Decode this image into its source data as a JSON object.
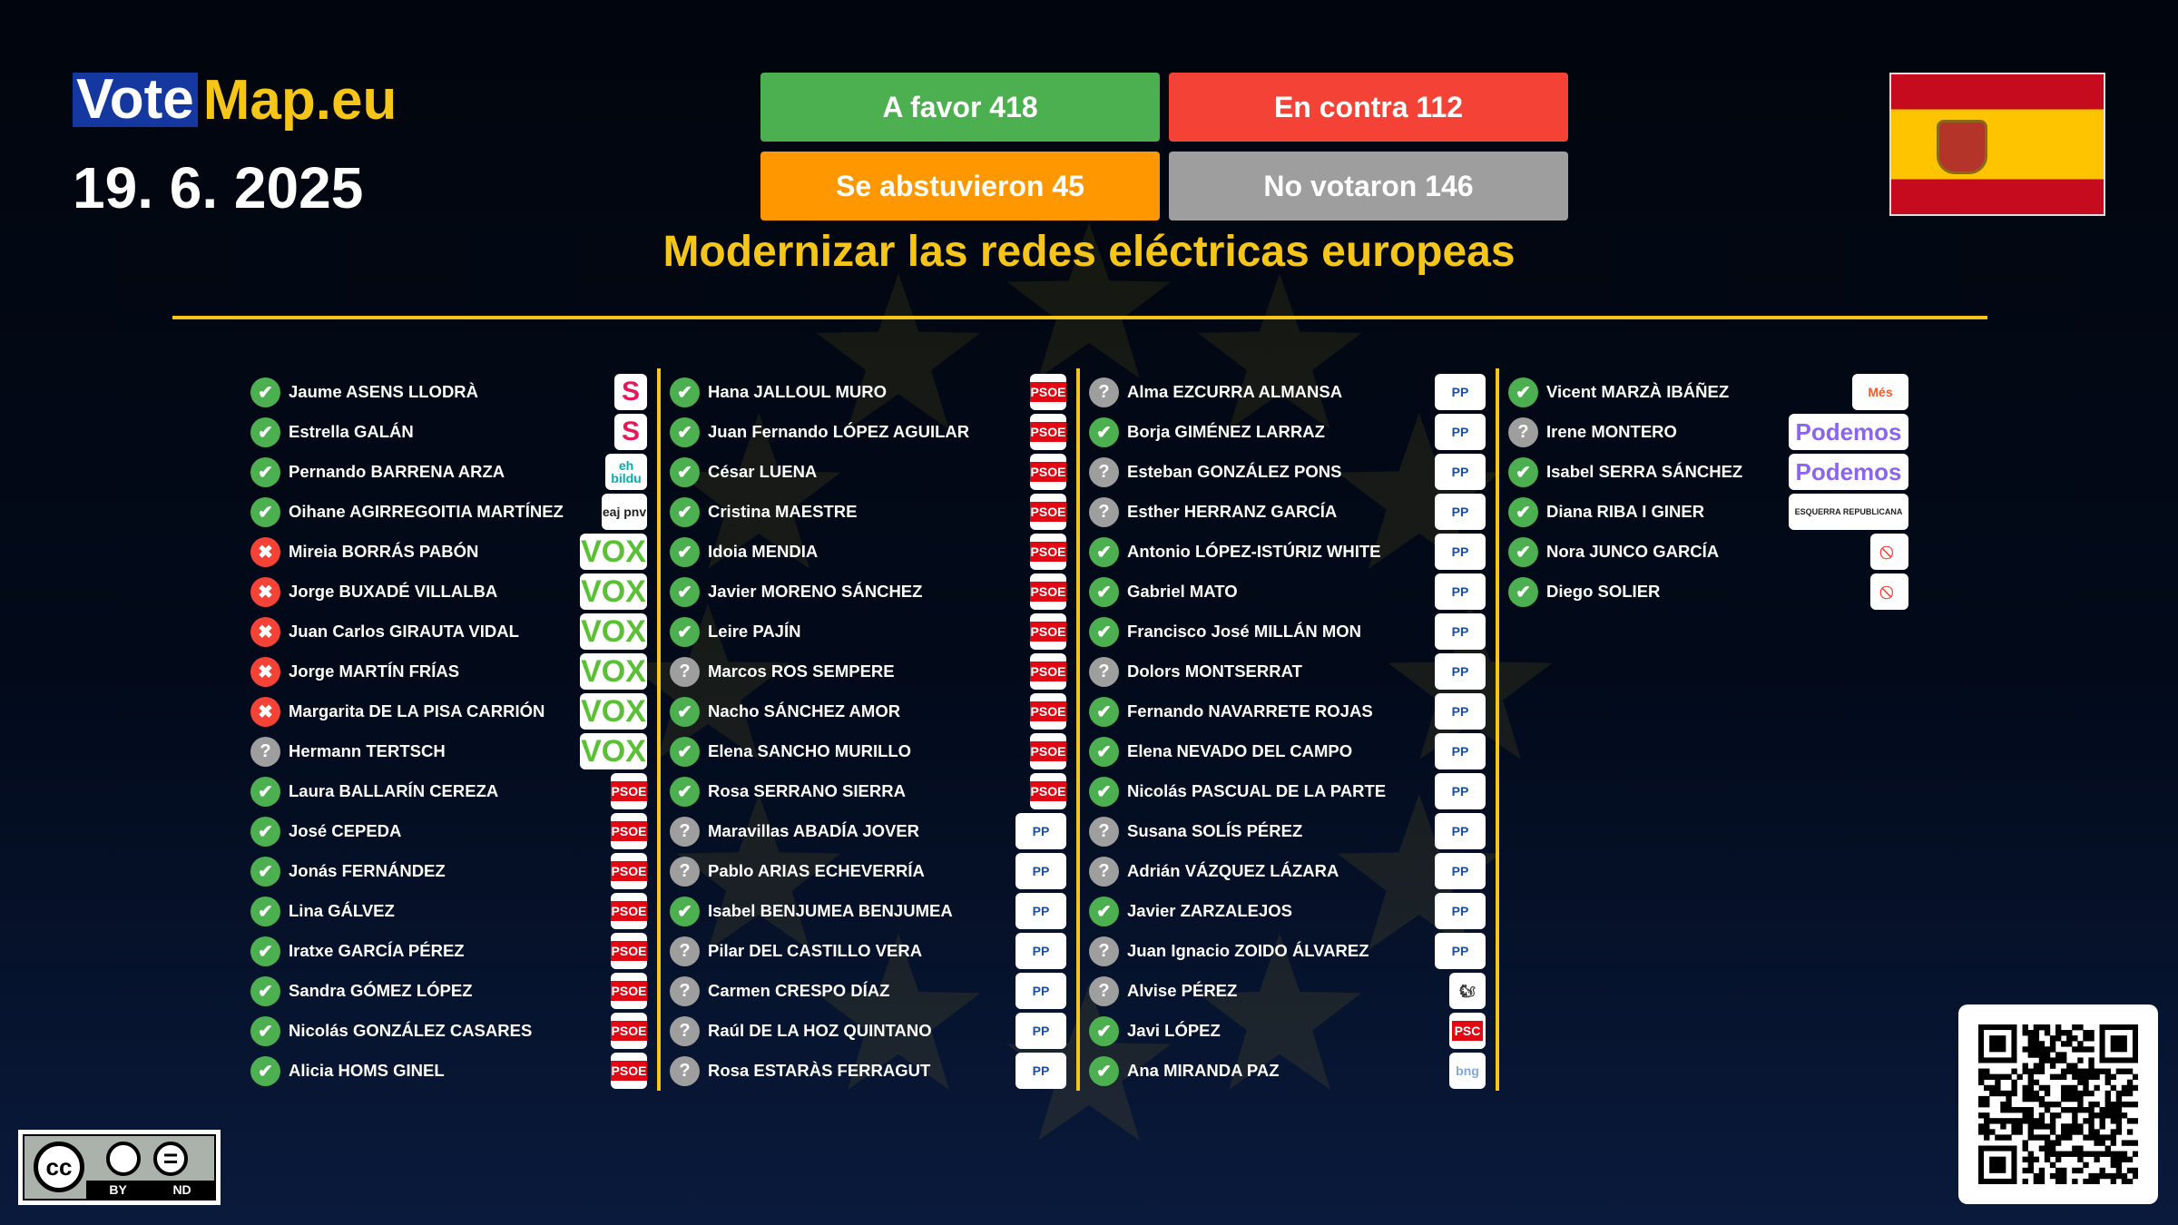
{
  "header": {
    "logo_a": "Vote",
    "logo_b": "Map.eu",
    "date": "19. 6. 2025",
    "title": "Modernizar las redes eléctricas europeas"
  },
  "tallies": [
    {
      "label": "A favor 418",
      "color": "#4caf50"
    },
    {
      "label": "En contra 112",
      "color": "#f44336"
    },
    {
      "label": "Se abstuvieron 45",
      "color": "#ff9800"
    },
    {
      "label": "No votaron 146",
      "color": "#9e9e9e"
    }
  ],
  "colors": {
    "accent": "#f5c518",
    "for": "#4caf50",
    "against": "#f44336",
    "absent": "#9e9e9e"
  },
  "country_flag": "Spain",
  "license": {
    "by": "BY",
    "nd": "ND"
  },
  "parties": {
    "SUMAR": {
      "text": "S",
      "fg": "#e5185c",
      "w": 36
    },
    "BILDU": {
      "text": "eh bildu",
      "fg": "#00b2a9",
      "w": 46
    },
    "PNV": {
      "text": "eaj pnv",
      "fg": "#222",
      "w": 50
    },
    "VOX": {
      "text": "VOX",
      "fg": "#5ac035",
      "w": 74
    },
    "PSOE": {
      "text": "PSOE",
      "fg": "#fff",
      "bg": "#e30613",
      "w": 40
    },
    "PP": {
      "text": "PP",
      "fg": "#1d4e9e",
      "w": 56
    },
    "SALF": {
      "text": "🐿",
      "fg": "#333",
      "w": 40
    },
    "PSC": {
      "text": "PSC",
      "fg": "#fff",
      "bg": "#e30613",
      "w": 40
    },
    "BNG": {
      "text": "bng",
      "fg": "#7fa8d8",
      "w": 40
    },
    "MES": {
      "text": "Més",
      "fg": "#f25c2a",
      "w": 62
    },
    "PODEMOS": {
      "text": "Podemos",
      "fg": "#8b64f0",
      "w": 132
    },
    "ERC": {
      "text": "ESQUERRA REPUBLICANA",
      "fg": "#222",
      "w": 132
    },
    "NI": {
      "text": "⃠",
      "fg": "#f44336",
      "w": 42
    }
  },
  "columns": [
    [
      {
        "name": "Jaume ASENS LLODRÀ",
        "vote": "for",
        "party": "SUMAR"
      },
      {
        "name": "Estrella GALÁN",
        "vote": "for",
        "party": "SUMAR"
      },
      {
        "name": "Pernando BARRENA ARZA",
        "vote": "for",
        "party": "BILDU"
      },
      {
        "name": "Oihane AGIRREGOITIA MARTÍNEZ",
        "vote": "for",
        "party": "PNV"
      },
      {
        "name": "Mireia BORRÁS PABÓN",
        "vote": "against",
        "party": "VOX"
      },
      {
        "name": "Jorge BUXADÉ VILLALBA",
        "vote": "against",
        "party": "VOX"
      },
      {
        "name": "Juan Carlos GIRAUTA VIDAL",
        "vote": "against",
        "party": "VOX"
      },
      {
        "name": "Jorge MARTÍN FRÍAS",
        "vote": "against",
        "party": "VOX"
      },
      {
        "name": "Margarita DE LA PISA CARRIÓN",
        "vote": "against",
        "party": "VOX"
      },
      {
        "name": "Hermann TERTSCH",
        "vote": "absent",
        "party": "VOX"
      },
      {
        "name": "Laura BALLARÍN CEREZA",
        "vote": "for",
        "party": "PSOE"
      },
      {
        "name": "José CEPEDA",
        "vote": "for",
        "party": "PSOE"
      },
      {
        "name": "Jonás FERNÁNDEZ",
        "vote": "for",
        "party": "PSOE"
      },
      {
        "name": "Lina GÁLVEZ",
        "vote": "for",
        "party": "PSOE"
      },
      {
        "name": "Iratxe GARCÍA PÉREZ",
        "vote": "for",
        "party": "PSOE"
      },
      {
        "name": "Sandra GÓMEZ LÓPEZ",
        "vote": "for",
        "party": "PSOE"
      },
      {
        "name": "Nicolás GONZÁLEZ CASARES",
        "vote": "for",
        "party": "PSOE"
      },
      {
        "name": "Alicia HOMS GINEL",
        "vote": "for",
        "party": "PSOE"
      }
    ],
    [
      {
        "name": "Hana JALLOUL MURO",
        "vote": "for",
        "party": "PSOE"
      },
      {
        "name": "Juan Fernando LÓPEZ AGUILAR",
        "vote": "for",
        "party": "PSOE"
      },
      {
        "name": "César LUENA",
        "vote": "for",
        "party": "PSOE"
      },
      {
        "name": "Cristina MAESTRE",
        "vote": "for",
        "party": "PSOE"
      },
      {
        "name": "Idoia MENDIA",
        "vote": "for",
        "party": "PSOE"
      },
      {
        "name": "Javier MORENO SÁNCHEZ",
        "vote": "for",
        "party": "PSOE"
      },
      {
        "name": "Leire PAJÍN",
        "vote": "for",
        "party": "PSOE"
      },
      {
        "name": "Marcos ROS SEMPERE",
        "vote": "absent",
        "party": "PSOE"
      },
      {
        "name": "Nacho SÁNCHEZ AMOR",
        "vote": "for",
        "party": "PSOE"
      },
      {
        "name": "Elena SANCHO MURILLO",
        "vote": "for",
        "party": "PSOE"
      },
      {
        "name": "Rosa SERRANO SIERRA",
        "vote": "for",
        "party": "PSOE"
      },
      {
        "name": "Maravillas ABADÍA JOVER",
        "vote": "absent",
        "party": "PP"
      },
      {
        "name": "Pablo ARIAS ECHEVERRÍA",
        "vote": "absent",
        "party": "PP"
      },
      {
        "name": "Isabel BENJUMEA BENJUMEA",
        "vote": "for",
        "party": "PP"
      },
      {
        "name": "Pilar DEL CASTILLO VERA",
        "vote": "absent",
        "party": "PP"
      },
      {
        "name": "Carmen CRESPO DÍAZ",
        "vote": "absent",
        "party": "PP"
      },
      {
        "name": "Raúl DE LA HOZ QUINTANO",
        "vote": "absent",
        "party": "PP"
      },
      {
        "name": "Rosa ESTARÀS FERRAGUT",
        "vote": "absent",
        "party": "PP"
      }
    ],
    [
      {
        "name": "Alma EZCURRA ALMANSA",
        "vote": "absent",
        "party": "PP"
      },
      {
        "name": "Borja GIMÉNEZ LARRAZ",
        "vote": "for",
        "party": "PP"
      },
      {
        "name": "Esteban GONZÁLEZ PONS",
        "vote": "absent",
        "party": "PP"
      },
      {
        "name": "Esther HERRANZ GARCÍA",
        "vote": "absent",
        "party": "PP"
      },
      {
        "name": "Antonio LÓPEZ-ISTÚRIZ WHITE",
        "vote": "for",
        "party": "PP"
      },
      {
        "name": "Gabriel MATO",
        "vote": "for",
        "party": "PP"
      },
      {
        "name": "Francisco José MILLÁN MON",
        "vote": "for",
        "party": "PP"
      },
      {
        "name": "Dolors MONTSERRAT",
        "vote": "absent",
        "party": "PP"
      },
      {
        "name": "Fernando NAVARRETE ROJAS",
        "vote": "for",
        "party": "PP"
      },
      {
        "name": "Elena NEVADO DEL CAMPO",
        "vote": "for",
        "party": "PP"
      },
      {
        "name": "Nicolás PASCUAL DE LA PARTE",
        "vote": "for",
        "party": "PP"
      },
      {
        "name": "Susana SOLÍS PÉREZ",
        "vote": "absent",
        "party": "PP"
      },
      {
        "name": "Adrián VÁZQUEZ LÁZARA",
        "vote": "absent",
        "party": "PP"
      },
      {
        "name": "Javier ZARZALEJOS",
        "vote": "for",
        "party": "PP"
      },
      {
        "name": "Juan Ignacio ZOIDO ÁLVAREZ",
        "vote": "absent",
        "party": "PP"
      },
      {
        "name": "Alvise PÉREZ",
        "vote": "absent",
        "party": "SALF"
      },
      {
        "name": "Javi LÓPEZ",
        "vote": "for",
        "party": "PSC"
      },
      {
        "name": "Ana MIRANDA PAZ",
        "vote": "for",
        "party": "BNG"
      }
    ],
    [
      {
        "name": "Vicent MARZÀ IBÁÑEZ",
        "vote": "for",
        "party": "MES"
      },
      {
        "name": "Irene MONTERO",
        "vote": "absent",
        "party": "PODEMOS"
      },
      {
        "name": "Isabel SERRA SÁNCHEZ",
        "vote": "for",
        "party": "PODEMOS"
      },
      {
        "name": "Diana RIBA I GINER",
        "vote": "for",
        "party": "ERC"
      },
      {
        "name": "Nora JUNCO GARCÍA",
        "vote": "for",
        "party": "NI"
      },
      {
        "name": "Diego SOLIER",
        "vote": "for",
        "party": "NI"
      }
    ]
  ]
}
